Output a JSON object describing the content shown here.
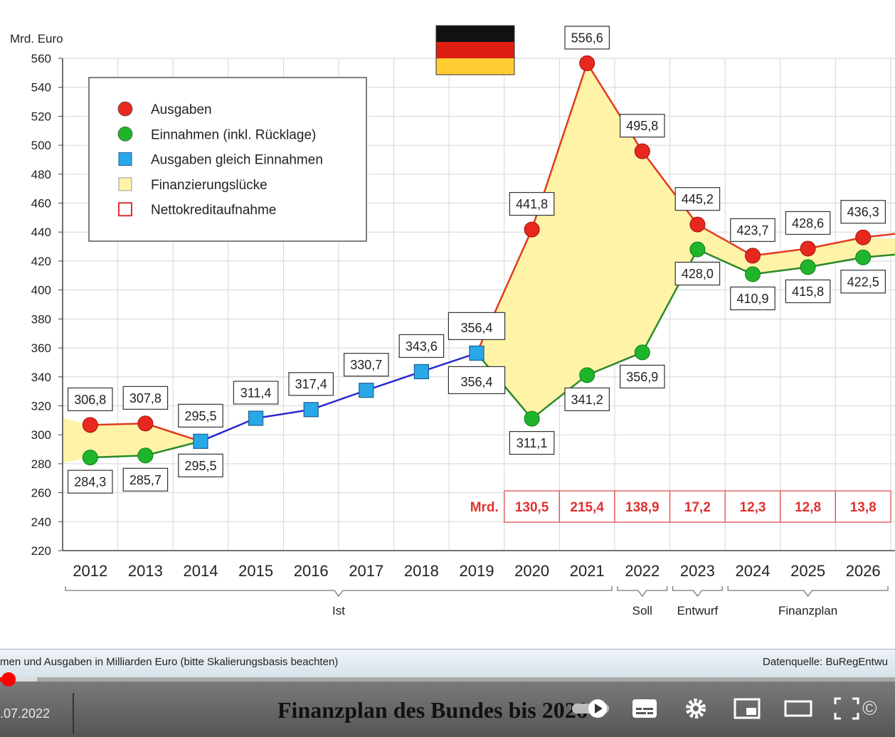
{
  "chart_data": {
    "type": "line",
    "ylabel": "Mrd. Euro",
    "ylim": [
      220,
      560
    ],
    "yticks": [
      220,
      240,
      260,
      280,
      300,
      320,
      340,
      360,
      380,
      400,
      420,
      440,
      460,
      480,
      500,
      520,
      540,
      560
    ],
    "x": [
      "2012",
      "2013",
      "2014",
      "2015",
      "2016",
      "2017",
      "2018",
      "2019",
      "2020",
      "2021",
      "2022",
      "2023",
      "2024",
      "2025",
      "2026"
    ],
    "grid": true,
    "legend_position": "top-left",
    "legend": [
      {
        "label": "Ausgaben",
        "marker": "circle",
        "color": "#e8281e"
      },
      {
        "label": "Einnahmen (inkl. Rücklage)",
        "marker": "circle",
        "color": "#1fb52a"
      },
      {
        "label": "Ausgaben gleich Einnahmen",
        "marker": "square",
        "color": "#29a8e8"
      },
      {
        "label": "Finanzierungslücke",
        "marker": "square",
        "color": "#fff3a8"
      },
      {
        "label": "Nettokreditaufnahme",
        "marker": "open-square",
        "color": "#e03030"
      }
    ],
    "series": [
      {
        "name": "Ausgaben",
        "color": "#e8281e",
        "line_color": "#e03a1e",
        "points": [
          {
            "x": "2012",
            "y": 306.8,
            "label": "306,8"
          },
          {
            "x": "2013",
            "y": 307.8,
            "label": "307,8"
          },
          {
            "x": "2020",
            "y": 441.8,
            "label": "441,8"
          },
          {
            "x": "2021",
            "y": 556.6,
            "label": "556,6"
          },
          {
            "x": "2022",
            "y": 495.8,
            "label": "495,8"
          },
          {
            "x": "2023",
            "y": 445.2,
            "label": "445,2"
          },
          {
            "x": "2024",
            "y": 423.7,
            "label": "423,7"
          },
          {
            "x": "2025",
            "y": 428.6,
            "label": "428,6"
          },
          {
            "x": "2026",
            "y": 436.3,
            "label": "436,3"
          }
        ]
      },
      {
        "name": "Einnahmen (inkl. Rücklage)",
        "color": "#1fb52a",
        "line_color": "#2a8a2a",
        "points": [
          {
            "x": "2012",
            "y": 284.3,
            "label": "284,3"
          },
          {
            "x": "2013",
            "y": 285.7,
            "label": "285,7"
          },
          {
            "x": "2020",
            "y": 311.1,
            "label": "311,1"
          },
          {
            "x": "2021",
            "y": 341.2,
            "label": "341,2"
          },
          {
            "x": "2022",
            "y": 356.9,
            "label": "356,9"
          },
          {
            "x": "2023",
            "y": 428.0,
            "label": "428,0"
          },
          {
            "x": "2024",
            "y": 410.9,
            "label": "410,9"
          },
          {
            "x": "2025",
            "y": 415.8,
            "label": "415,8"
          },
          {
            "x": "2026",
            "y": 422.5,
            "label": "422,5"
          }
        ]
      },
      {
        "name": "Ausgaben gleich Einnahmen",
        "color": "#29a8e8",
        "line_color": "#2a2ad0",
        "points": [
          {
            "x": "2014",
            "y": 295.5,
            "label_above": "295,5",
            "label_below": "295,5"
          },
          {
            "x": "2015",
            "y": 311.4,
            "label_above": "311,4"
          },
          {
            "x": "2016",
            "y": 317.4,
            "label_above": "317,4"
          },
          {
            "x": "2017",
            "y": 330.7,
            "label_above": "330,7"
          },
          {
            "x": "2018",
            "y": 343.6,
            "label_above": "343,6"
          },
          {
            "x": "2019",
            "y": 356.4,
            "label_above": "356,4",
            "label_below": "356,4"
          }
        ]
      }
    ],
    "nettokredit": {
      "prefix": "Mrd.",
      "values": [
        {
          "x": "2020",
          "label": "130,5"
        },
        {
          "x": "2021",
          "label": "215,4"
        },
        {
          "x": "2022",
          "label": "138,9"
        },
        {
          "x": "2023",
          "label": "17,2"
        },
        {
          "x": "2024",
          "label": "12,3"
        },
        {
          "x": "2025",
          "label": "12,8"
        },
        {
          "x": "2026",
          "label": "13,8"
        }
      ]
    },
    "groups": [
      {
        "label": "Ist",
        "from": "2012",
        "to": "2021"
      },
      {
        "label": "Soll",
        "from": "2022",
        "to": "2022"
      },
      {
        "label": "Entwurf",
        "from": "2023",
        "to": "2023"
      },
      {
        "label": "Finanzplan",
        "from": "2024",
        "to": "2026"
      }
    ]
  },
  "footer": {
    "note": "men und Ausgaben in Milliarden Euro (bitte Skalierungsbasis beachten)",
    "source": "Datenquelle: BuRegEntwu"
  },
  "player": {
    "date": ".07.2022",
    "title": "Finanzplan des Bundes bis 2026",
    "copyright": "©"
  }
}
